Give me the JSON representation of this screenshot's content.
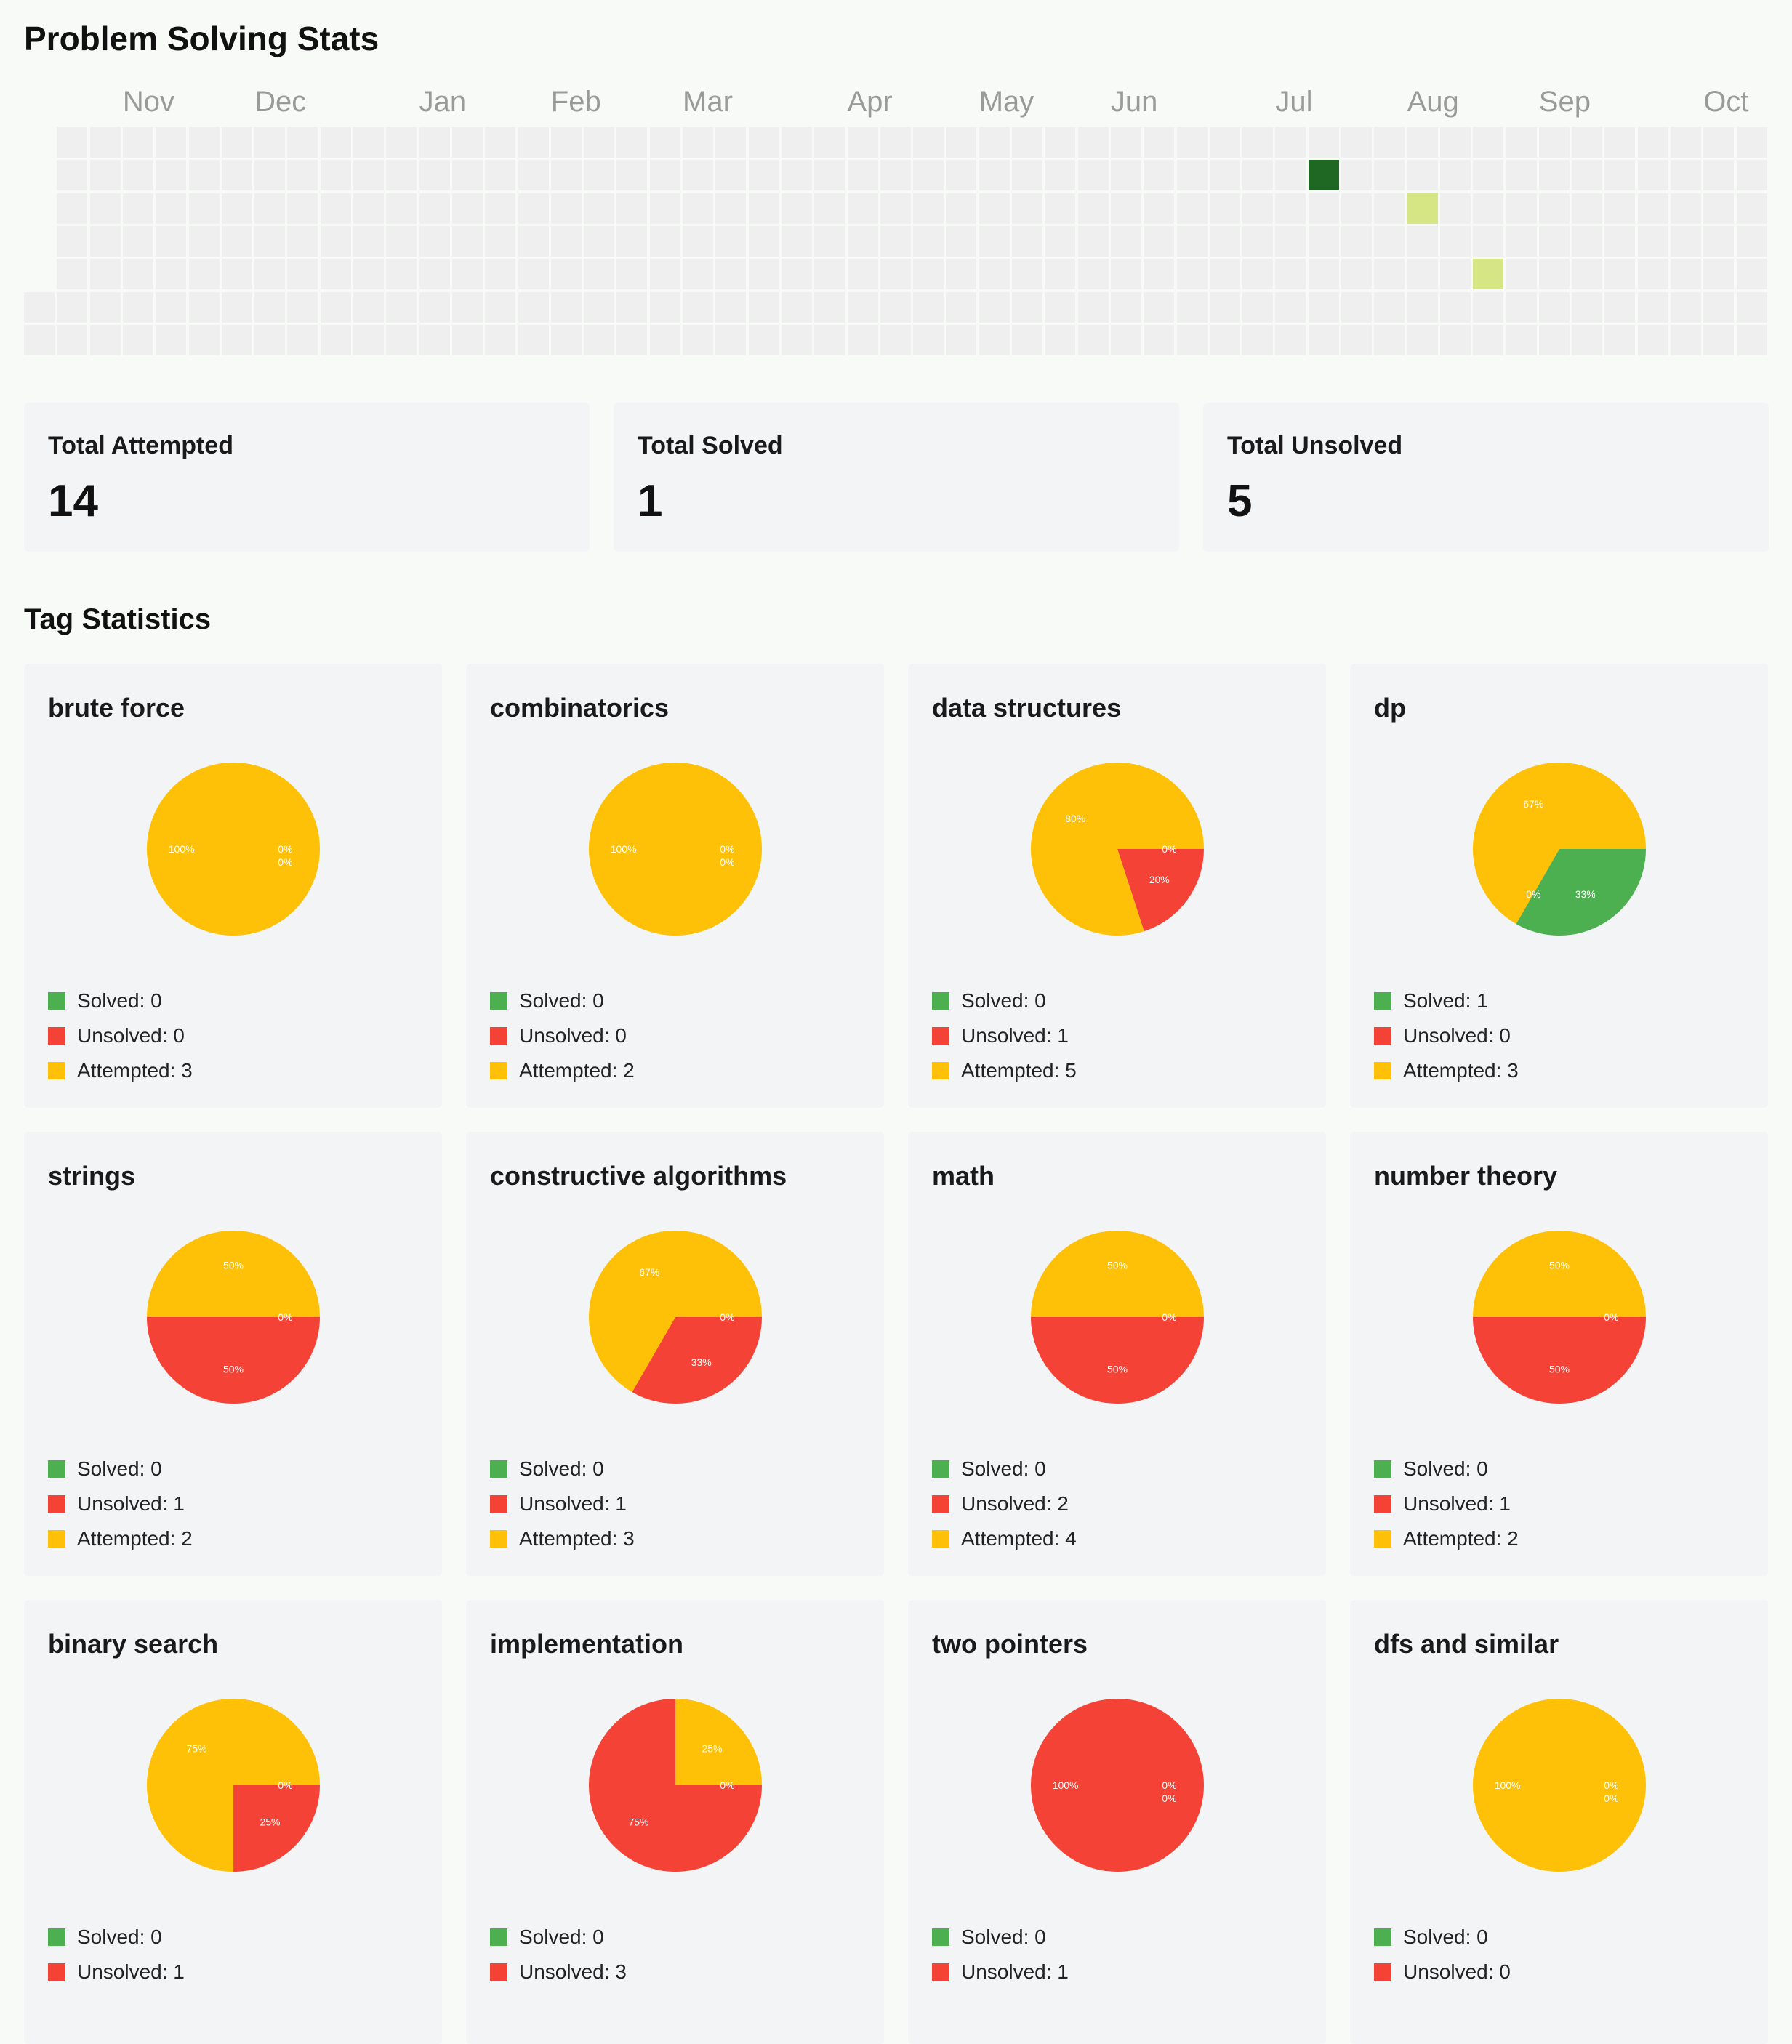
{
  "page_title": "Problem Solving Stats",
  "heatmap": {
    "columns": 53,
    "rows": 7,
    "first_column_start_row": 5,
    "months": [
      {
        "label": "Nov",
        "week": 3
      },
      {
        "label": "Dec",
        "week": 7
      },
      {
        "label": "Jan",
        "week": 12
      },
      {
        "label": "Feb",
        "week": 16
      },
      {
        "label": "Mar",
        "week": 20
      },
      {
        "label": "Apr",
        "week": 25
      },
      {
        "label": "May",
        "week": 29
      },
      {
        "label": "Jun",
        "week": 33
      },
      {
        "label": "Jul",
        "week": 38
      },
      {
        "label": "Aug",
        "week": 42
      },
      {
        "label": "Sep",
        "week": 46
      },
      {
        "label": "Oct",
        "week": 51
      }
    ],
    "active_cells": [
      {
        "week": 39,
        "day": 1,
        "level": "high"
      },
      {
        "week": 42,
        "day": 2,
        "level": "low"
      },
      {
        "week": 44,
        "day": 4,
        "level": "low"
      }
    ],
    "colors": {
      "empty": "#efefef",
      "low": "#d6e685",
      "high": "#1e6823"
    }
  },
  "stats": [
    {
      "label": "Total Attempted",
      "value": "14"
    },
    {
      "label": "Total Solved",
      "value": "1"
    },
    {
      "label": "Total Unsolved",
      "value": "5"
    }
  ],
  "tag_section_title": "Tag Statistics",
  "colors": {
    "solved": "#4caf50",
    "unsolved": "#f44336",
    "attempted": "#ffc107"
  },
  "chart_data": {
    "type": "pie",
    "slice_order": [
      "Solved",
      "Unsolved",
      "Attempted"
    ],
    "tags": [
      {
        "name": "brute force",
        "slices": [
          0,
          0,
          100
        ],
        "labels": [
          "0%",
          "0%",
          "100%"
        ],
        "legend": [
          "Solved: 0",
          "Unsolved: 0",
          "Attempted: 3"
        ]
      },
      {
        "name": "combinatorics",
        "slices": [
          0,
          0,
          100
        ],
        "labels": [
          "0%",
          "0%",
          "100%"
        ],
        "legend": [
          "Solved: 0",
          "Unsolved: 0",
          "Attempted: 2"
        ]
      },
      {
        "name": "data structures",
        "slices": [
          0,
          20,
          80
        ],
        "labels": [
          "0%",
          "20%",
          "80%"
        ],
        "legend": [
          "Solved: 0",
          "Unsolved: 1",
          "Attempted: 5"
        ]
      },
      {
        "name": "dp",
        "slices": [
          33.33,
          0,
          66.67
        ],
        "labels": [
          "33%",
          "0%",
          "67%"
        ],
        "legend": [
          "Solved: 1",
          "Unsolved: 0",
          "Attempted: 3"
        ]
      },
      {
        "name": "strings",
        "slices": [
          0,
          50,
          50
        ],
        "labels": [
          "0%",
          "50%",
          "50%"
        ],
        "legend": [
          "Solved: 0",
          "Unsolved: 1",
          "Attempted: 2"
        ]
      },
      {
        "name": "constructive algorithms",
        "slices": [
          0,
          33.33,
          66.67
        ],
        "labels": [
          "0%",
          "33%",
          "67%"
        ],
        "legend": [
          "Solved: 0",
          "Unsolved: 1",
          "Attempted: 3"
        ]
      },
      {
        "name": "math",
        "slices": [
          0,
          50,
          50
        ],
        "labels": [
          "0%",
          "50%",
          "50%"
        ],
        "legend": [
          "Solved: 0",
          "Unsolved: 2",
          "Attempted: 4"
        ]
      },
      {
        "name": "number theory",
        "slices": [
          0,
          50,
          50
        ],
        "labels": [
          "0%",
          "50%",
          "50%"
        ],
        "legend": [
          "Solved: 0",
          "Unsolved: 1",
          "Attempted: 2"
        ]
      },
      {
        "name": "binary search",
        "slices": [
          0,
          25,
          75
        ],
        "labels": [
          "0%",
          "25%",
          "75%"
        ],
        "legend": [
          "Solved: 0",
          "Unsolved: 1"
        ]
      },
      {
        "name": "implementation",
        "slices": [
          0,
          75,
          25
        ],
        "labels": [
          "0%",
          "75%",
          "25%"
        ],
        "legend": [
          "Solved: 0",
          "Unsolved: 3"
        ]
      },
      {
        "name": "two pointers",
        "slices": [
          0,
          100,
          0
        ],
        "labels": [
          "0%",
          "100%",
          "0%"
        ],
        "legend": [
          "Solved: 0",
          "Unsolved: 1"
        ]
      },
      {
        "name": "dfs and similar",
        "slices": [
          0,
          0,
          100
        ],
        "labels": [
          "0%",
          "0%",
          "100%"
        ],
        "legend": [
          "Solved: 0",
          "Unsolved: 0"
        ]
      }
    ]
  }
}
